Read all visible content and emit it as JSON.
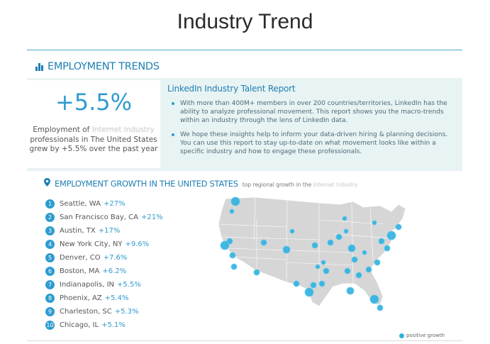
{
  "slide": {
    "title": "Industry Trend"
  },
  "section": {
    "label": "EMPLOYMENT TRENDS",
    "icon": "bar-chart-icon"
  },
  "stat": {
    "value": "+5.5%",
    "desc_prefix": "Employment of",
    "blurred_industry": "Internet industry",
    "desc_line2": "professionals in The United States",
    "desc_line3": "grew by +5.5% over the past year"
  },
  "report": {
    "title": "LinkedIn Industry Talent Report",
    "bullets": [
      "With more than 400M+ members in over 200 countries/territories, LinkedIn has the ability to analyze professional movement. This report shows you the macro-trends within an industry through the lens of LinkedIn data.",
      "We hope these insights help to inform your data-driven hiring & planning decisions. You can use this report to stay up-to-date on what movement looks like within a specific industry and how to engage these professionals."
    ]
  },
  "growth": {
    "title": "EMPLOYMENT GROWTH IN THE UNITED STATES",
    "subtitle_prefix": "top regional growth in the",
    "blurred_industry": "Internet industry",
    "icon": "location-pin-icon",
    "cities": [
      {
        "rank": "1",
        "name": "Seattle, WA",
        "pct": "+27%"
      },
      {
        "rank": "2",
        "name": "San Francisco Bay, CA",
        "pct": "+21%"
      },
      {
        "rank": "3",
        "name": "Austin, TX",
        "pct": "+17%"
      },
      {
        "rank": "4",
        "name": "New York City, NY",
        "pct": "+9.6%"
      },
      {
        "rank": "5",
        "name": "Denver, CO",
        "pct": "+7.6%"
      },
      {
        "rank": "6",
        "name": "Boston, MA",
        "pct": "+6.2%"
      },
      {
        "rank": "7",
        "name": "Indianapolis, IN",
        "pct": "+5.5%"
      },
      {
        "rank": "8",
        "name": "Phoenix, AZ",
        "pct": "+5.4%"
      },
      {
        "rank": "9",
        "name": "Charleston, SC",
        "pct": "+5.3%"
      },
      {
        "rank": "10",
        "name": "Chicago, IL",
        "pct": "+5.1%"
      }
    ],
    "legend": "positive growth"
  },
  "colors": {
    "accent": "#2e9bcf",
    "heading": "#1e7fb4",
    "band": "#e8f3f3",
    "map_fill": "#d6d6d6",
    "dot": "#2eb1e0"
  }
}
